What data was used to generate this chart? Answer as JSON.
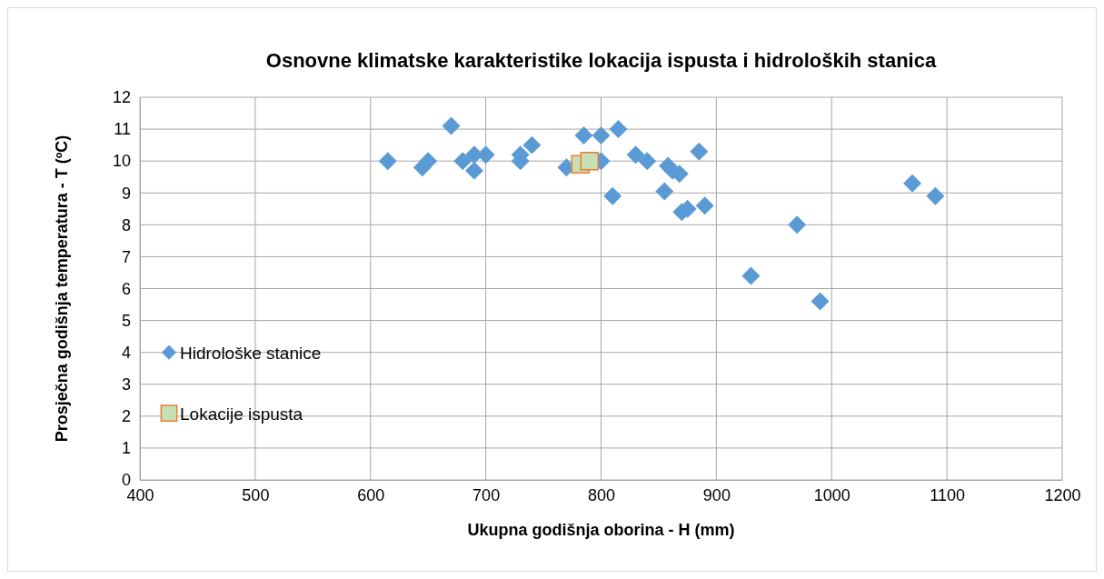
{
  "chart_data": {
    "type": "scatter",
    "title": "Osnovne klimatske karakteristike lokacija ispusta i hidroloških stanica",
    "xlabel": "Ukupna godišnja oborina - H (mm)",
    "ylabel": "Prosječna godišnja temperatura - T (ºC)",
    "xlim": [
      400,
      1200
    ],
    "xticks": [
      400,
      500,
      600,
      700,
      800,
      900,
      1000,
      1100,
      1200
    ],
    "ylim": [
      0,
      12
    ],
    "yticks": [
      0,
      1,
      2,
      3,
      4,
      5,
      6,
      7,
      8,
      9,
      10,
      11,
      12
    ],
    "grid": true,
    "legend": "left",
    "series": [
      {
        "name": "Hidrološke stanice",
        "color": "#5b9bd5",
        "marker": "diamond",
        "x": [
          615,
          645,
          650,
          670,
          680,
          690,
          690,
          700,
          730,
          730,
          740,
          770,
          785,
          800,
          800,
          815,
          810,
          830,
          840,
          855,
          858,
          862,
          868,
          870,
          875,
          885,
          890,
          930,
          970,
          990,
          1070,
          1090
        ],
        "values": [
          10,
          9.8,
          10,
          11.1,
          10,
          10.2,
          9.7,
          10.2,
          10.2,
          10,
          10.5,
          9.8,
          10.8,
          10.8,
          10,
          11,
          8.9,
          10.2,
          10,
          9.05,
          9.85,
          9.7,
          9.6,
          8.4,
          8.5,
          10.3,
          8.6,
          6.4,
          8,
          5.6,
          9.3,
          8.9
        ]
      },
      {
        "name": "Lokacije ispusta",
        "color": "#c5e0b4",
        "marker": "square",
        "x": [
          782,
          790
        ],
        "values": [
          9.9,
          10
        ]
      }
    ]
  }
}
